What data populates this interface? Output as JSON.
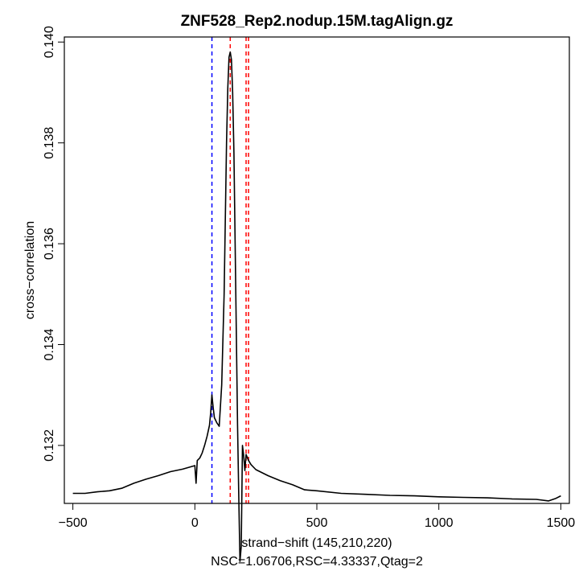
{
  "chart_data": {
    "type": "line",
    "title": "ZNF528_Rep2.nodup.15M.tagAlign.gz",
    "xlabel": "strand−shift (145,210,220)",
    "subtitle": "NSC=1.06706,RSC=4.33337,Qtag=2",
    "ylabel": "cross−correlation",
    "xlim": [
      -535,
      1535
    ],
    "ylim": [
      0.13085,
      0.1401
    ],
    "x_ticks": [
      -500,
      0,
      500,
      1000,
      1500
    ],
    "x_tick_labels": [
      "−500",
      "0",
      "500",
      "1000",
      "1500"
    ],
    "y_ticks": [
      0.132,
      0.134,
      0.136,
      0.138,
      0.14
    ],
    "y_tick_labels": [
      "0.132",
      "0.134",
      "0.136",
      "0.138",
      "0.140"
    ],
    "vlines": [
      {
        "x": 70,
        "color": "#0000ff",
        "style": "dashed"
      },
      {
        "x": 145,
        "color": "#ff0000",
        "style": "dashed"
      },
      {
        "x": 210,
        "color": "#ff0000",
        "style": "dashed"
      },
      {
        "x": 220,
        "color": "#ff0000",
        "style": "dashed"
      }
    ],
    "series": [
      {
        "color": "#000000",
        "x": [
          -500,
          -450,
          -400,
          -350,
          -300,
          -250,
          -200,
          -150,
          -100,
          -50,
          0,
          5,
          10,
          20,
          30,
          40,
          50,
          60,
          65,
          70,
          75,
          80,
          90,
          100,
          110,
          120,
          125,
          130,
          135,
          140,
          145,
          150,
          155,
          160,
          165,
          170,
          175,
          180,
          185,
          190,
          195,
          200,
          205,
          210,
          220,
          230,
          250,
          300,
          350,
          400,
          450,
          500,
          600,
          700,
          800,
          900,
          1000,
          1100,
          1200,
          1300,
          1400,
          1450,
          1480,
          1500
        ],
        "y": [
          0.13105,
          0.13105,
          0.13108,
          0.1311,
          0.13115,
          0.13125,
          0.13133,
          0.1314,
          0.13148,
          0.13153,
          0.1316,
          0.13125,
          0.1317,
          0.13175,
          0.13185,
          0.132,
          0.13218,
          0.1324,
          0.13265,
          0.133,
          0.13275,
          0.13255,
          0.13245,
          0.13238,
          0.1332,
          0.135,
          0.1365,
          0.138,
          0.1391,
          0.1397,
          0.1398,
          0.13965,
          0.139,
          0.1378,
          0.136,
          0.1342,
          0.1324,
          0.131,
          0.1297,
          0.13,
          0.132,
          0.1318,
          0.1315,
          0.13182,
          0.1317,
          0.13162,
          0.13152,
          0.1314,
          0.1313,
          0.13122,
          0.13112,
          0.1311,
          0.13105,
          0.13103,
          0.13101,
          0.131,
          0.13098,
          0.13097,
          0.13096,
          0.13094,
          0.13093,
          0.1309,
          0.13095,
          0.131
        ]
      }
    ]
  }
}
